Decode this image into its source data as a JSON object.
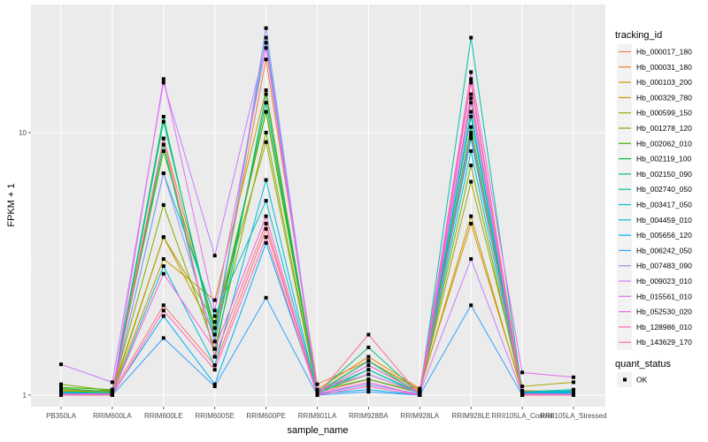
{
  "chart_data": {
    "type": "line",
    "title": "",
    "xlabel": "sample_name",
    "ylabel": "FPKM + 1",
    "y_scale": "log10",
    "ylim": [
      0.935,
      26.5
    ],
    "y_ticks": [
      1,
      10
    ],
    "y_tick_labels": [
      "1",
      "10"
    ],
    "grid": true,
    "legend_position": "right",
    "categories": [
      "PB350LA",
      "RRIM600LA",
      "RRIM600LE",
      "RRIM600SE",
      "RRIM600PE",
      "RRIM901LA",
      "RRIM928BA",
      "RRIM928LA",
      "RRIM928LE",
      "RRII105LA_Control",
      "RRII105LA_Stressed"
    ],
    "series": [
      {
        "name": "Hb_000017_180",
        "color": "#F8766D",
        "values": [
          1.0,
          1.02,
          2.2,
          1.3,
          4.3,
          1.02,
          1.15,
          1.03,
          16.0,
          1.02,
          1.01
        ]
      },
      {
        "name": "Hb_000031_180",
        "color": "#EA8331",
        "values": [
          1.02,
          1.05,
          9.5,
          1.8,
          19.0,
          1.1,
          1.35,
          1.05,
          13.5,
          1.03,
          1.02
        ]
      },
      {
        "name": "Hb_000103_200",
        "color": "#D89000",
        "values": [
          1.03,
          1.04,
          4.0,
          1.7,
          12.0,
          1.05,
          1.4,
          1.06,
          4.5,
          1.04,
          1.03
        ]
      },
      {
        "name": "Hb_000329_780",
        "color": "#C09B00",
        "values": [
          1.05,
          1.03,
          3.3,
          2.3,
          14.5,
          1.03,
          1.35,
          1.04,
          4.8,
          1.02,
          1.02
        ]
      },
      {
        "name": "Hb_000599_150",
        "color": "#A3A500",
        "values": [
          1.04,
          1.02,
          4.0,
          1.9,
          9.2,
          1.02,
          1.3,
          1.03,
          6.5,
          1.08,
          1.12
        ]
      },
      {
        "name": "Hb_001278_120",
        "color": "#7CAE00",
        "values": [
          1.1,
          1.04,
          5.3,
          1.5,
          10.0,
          1.03,
          1.2,
          1.02,
          7.5,
          1.01,
          1.01
        ]
      },
      {
        "name": "Hb_002062_010",
        "color": "#39B600",
        "values": [
          1.07,
          1.05,
          8.5,
          1.8,
          12.0,
          1.04,
          1.15,
          1.02,
          9.8,
          1.02,
          1.03
        ]
      },
      {
        "name": "Hb_002119_100",
        "color": "#00BB4E",
        "values": [
          1.06,
          1.03,
          11.5,
          1.6,
          13.0,
          1.03,
          1.25,
          1.02,
          10.5,
          1.02,
          1.02
        ]
      },
      {
        "name": "Hb_002150_090",
        "color": "#00BF7D",
        "values": [
          1.03,
          1.02,
          9.0,
          1.4,
          14.0,
          1.02,
          1.52,
          1.01,
          11.5,
          1.01,
          1.04
        ]
      },
      {
        "name": "Hb_002740_050",
        "color": "#00C1A3",
        "values": [
          1.02,
          1.02,
          11.0,
          1.7,
          23.0,
          1.02,
          1.35,
          1.01,
          23.0,
          1.03,
          1.05
        ]
      },
      {
        "name": "Hb_003417_050",
        "color": "#00BFC4",
        "values": [
          1.01,
          1.01,
          7.0,
          2.0,
          5.5,
          1.01,
          1.25,
          1.01,
          8.5,
          1.02,
          1.04
        ]
      },
      {
        "name": "Hb_004459_010",
        "color": "#00BAE0",
        "values": [
          1.01,
          1.01,
          3.1,
          1.3,
          6.6,
          1.01,
          1.1,
          1.01,
          12.0,
          1.01,
          1.02
        ]
      },
      {
        "name": "Hb_005656_120",
        "color": "#00B0F6",
        "values": [
          1.02,
          1.01,
          2.0,
          1.1,
          3.8,
          1.01,
          1.05,
          1.0,
          9.5,
          1.02,
          1.03
        ]
      },
      {
        "name": "Hb_006242_050",
        "color": "#35A2FF",
        "values": [
          1.0,
          1.0,
          1.65,
          1.08,
          2.35,
          1.0,
          1.03,
          1.0,
          2.2,
          1.0,
          1.01
        ]
      },
      {
        "name": "Hb_007483_090",
        "color": "#9590FF",
        "values": [
          1.0,
          1.01,
          7.0,
          1.6,
          25.0,
          1.01,
          1.1,
          1.01,
          13.0,
          1.01,
          1.01
        ]
      },
      {
        "name": "Hb_009023_010",
        "color": "#C77CFF",
        "values": [
          1.31,
          1.12,
          15.5,
          3.4,
          22.0,
          1.05,
          1.2,
          1.02,
          3.3,
          1.01,
          1.01
        ]
      },
      {
        "name": "Hb_015561_010",
        "color": "#E76BF3",
        "values": [
          1.01,
          1.01,
          16.0,
          2.1,
          21.0,
          1.02,
          1.3,
          1.02,
          17.0,
          1.22,
          1.17
        ]
      },
      {
        "name": "Hb_052530_020",
        "color": "#FA62DB",
        "values": [
          1.0,
          1.01,
          2.9,
          1.5,
          4.8,
          1.01,
          1.12,
          1.0,
          14.0,
          1.01,
          1.0
        ]
      },
      {
        "name": "Hb_128986_010",
        "color": "#FF62BC",
        "values": [
          1.0,
          1.0,
          2.1,
          1.25,
          4.0,
          1.0,
          1.08,
          1.0,
          15.5,
          1.0,
          1.0
        ]
      },
      {
        "name": "Hb_143629_170",
        "color": "#FF6C91",
        "values": [
          1.0,
          1.0,
          9.5,
          1.4,
          4.5,
          1.0,
          1.7,
          1.0,
          10.0,
          1.0,
          1.0
        ]
      }
    ],
    "legends": [
      {
        "title": "tracking_id"
      },
      {
        "title": "quant_status",
        "entries": [
          "OK"
        ]
      }
    ]
  }
}
